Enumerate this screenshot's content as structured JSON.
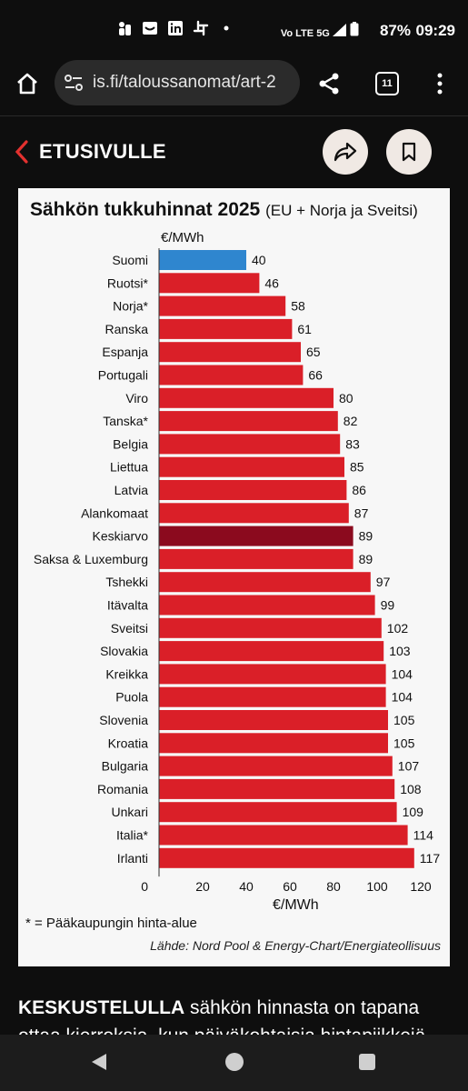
{
  "status_bar": {
    "time": "09:29",
    "battery": "87%",
    "network": "5G",
    "volte": "Vo LTE"
  },
  "browser": {
    "url": "is.fi/taloussanomat/art-2",
    "tab_count": "11"
  },
  "header": {
    "back_label": "ETUSIVULLE"
  },
  "chart_data": {
    "type": "bar",
    "orientation": "horizontal",
    "title": "Sähkön tukkuhinnat 2025",
    "subtitle": "(EU + Norja ja Sveitsi)",
    "unit_top": "€/MWh",
    "xlabel": "€/MWh",
    "xlim": [
      0,
      125
    ],
    "xticks": [
      0,
      20,
      40,
      60,
      80,
      100,
      120
    ],
    "categories": [
      "Suomi",
      "Ruotsi*",
      "Norja*",
      "Ranska",
      "Espanja",
      "Portugali",
      "Viro",
      "Tanska*",
      "Belgia",
      "Liettua",
      "Latvia",
      "Alankomaat",
      "Keskiarvo",
      "Saksa & Luxemburg",
      "Tshekki",
      "Itävalta",
      "Sveitsi",
      "Slovakia",
      "Kreikka",
      "Puola",
      "Slovenia",
      "Kroatia",
      "Bulgaria",
      "Romania",
      "Unkari",
      "Italia*",
      "Irlanti"
    ],
    "values": [
      40,
      46,
      58,
      61,
      65,
      66,
      80,
      82,
      83,
      85,
      86,
      87,
      89,
      89,
      97,
      99,
      102,
      103,
      104,
      104,
      105,
      105,
      107,
      108,
      109,
      114,
      117
    ],
    "colors": {
      "highlight": "#2f86cf",
      "average": "#8b0a1e",
      "default": "#da1f28"
    },
    "highlight_category": "Suomi",
    "average_category": "Keskiarvo",
    "footnote": "* = Pääkaupungin hinta-alue",
    "source": "Lähde: Nord Pool & Energy-Chart/Energiateollisuus"
  },
  "article": {
    "lead_bold": "KESKUSTELULLA",
    "lead_text": " sähkön hinnasta on tapana ottaa kierroksia, kun päiväkohtaisia hintapiikkejä"
  }
}
